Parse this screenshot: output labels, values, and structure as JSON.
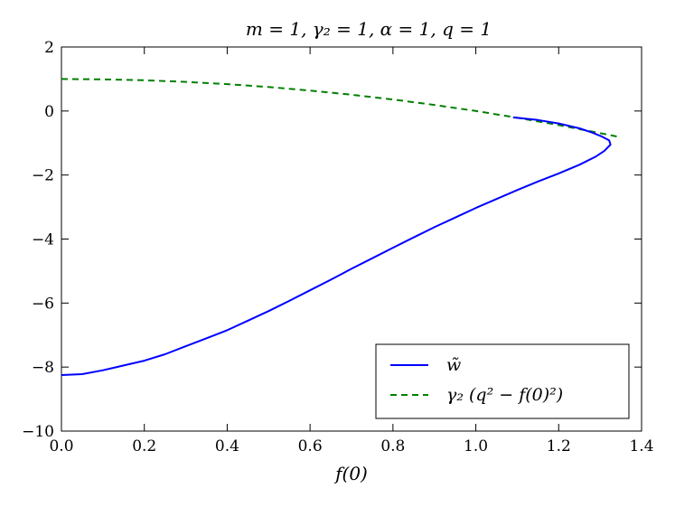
{
  "chart_data": {
    "type": "line",
    "title": "m = 1, γ₂ = 1, α = 1, q = 1",
    "xlabel": "f(0)",
    "ylabel": "",
    "xlim": [
      0.0,
      1.4
    ],
    "ylim": [
      -10,
      2
    ],
    "xticks": [
      "0.0",
      "0.2",
      "0.4",
      "0.6",
      "0.8",
      "1.0",
      "1.2",
      "1.4"
    ],
    "yticks": [
      "2",
      "0",
      "−2",
      "−4",
      "−6",
      "−8",
      "−10"
    ],
    "grid": false,
    "legend_position": "lower-right",
    "series": [
      {
        "name": "w̃",
        "color": "#0000ff",
        "style": "solid",
        "points": [
          [
            0.0,
            -8.25
          ],
          [
            0.05,
            -8.22
          ],
          [
            0.1,
            -8.1
          ],
          [
            0.15,
            -7.95
          ],
          [
            0.2,
            -7.8
          ],
          [
            0.25,
            -7.6
          ],
          [
            0.3,
            -7.35
          ],
          [
            0.35,
            -7.1
          ],
          [
            0.4,
            -6.85
          ],
          [
            0.45,
            -6.55
          ],
          [
            0.5,
            -6.25
          ],
          [
            0.55,
            -5.93
          ],
          [
            0.6,
            -5.6
          ],
          [
            0.65,
            -5.27
          ],
          [
            0.7,
            -4.93
          ],
          [
            0.75,
            -4.6
          ],
          [
            0.8,
            -4.27
          ],
          [
            0.85,
            -3.95
          ],
          [
            0.9,
            -3.63
          ],
          [
            0.95,
            -3.33
          ],
          [
            1.0,
            -3.03
          ],
          [
            1.05,
            -2.75
          ],
          [
            1.1,
            -2.47
          ],
          [
            1.15,
            -2.2
          ],
          [
            1.2,
            -1.95
          ],
          [
            1.25,
            -1.68
          ],
          [
            1.29,
            -1.42
          ],
          [
            1.31,
            -1.25
          ],
          [
            1.325,
            -1.05
          ],
          [
            1.322,
            -0.92
          ],
          [
            1.305,
            -0.8
          ],
          [
            1.28,
            -0.67
          ],
          [
            1.25,
            -0.54
          ],
          [
            1.2,
            -0.39
          ],
          [
            1.15,
            -0.28
          ],
          [
            1.09,
            -0.2
          ]
        ]
      },
      {
        "name": "γ₂ (q² − f(0)²)",
        "color": "#008000",
        "style": "dashed",
        "points": [
          [
            0.0,
            1.0
          ],
          [
            0.1,
            0.99
          ],
          [
            0.2,
            0.96
          ],
          [
            0.3,
            0.91
          ],
          [
            0.4,
            0.84
          ],
          [
            0.5,
            0.75
          ],
          [
            0.6,
            0.64
          ],
          [
            0.7,
            0.51
          ],
          [
            0.8,
            0.36
          ],
          [
            0.9,
            0.19
          ],
          [
            1.0,
            0.0
          ],
          [
            1.1,
            -0.21
          ],
          [
            1.2,
            -0.44
          ],
          [
            1.3,
            -0.69
          ],
          [
            1.34,
            -0.7956
          ]
        ]
      }
    ]
  }
}
